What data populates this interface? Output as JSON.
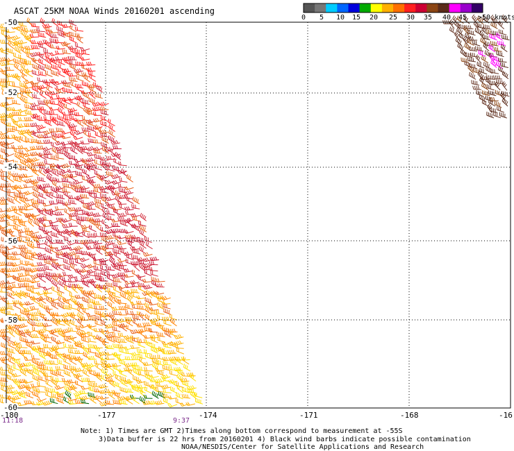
{
  "title": "ASCAT 25KM NOAA Winds 20160201 ascending",
  "colorbar": {
    "labels": [
      "0",
      "5",
      "10",
      "15",
      "20",
      "25",
      "30",
      "35",
      "40",
      "45",
      ">50 knots"
    ],
    "colors": [
      "#555555",
      "#777777",
      "#00ccff",
      "#0066ff",
      "#0000dd",
      "#00aa00",
      "#ffff00",
      "#ffb000",
      "#ff7000",
      "#ff2020",
      "#cc0033",
      "#8b4513",
      "#5a2b1a",
      "#ff00ff",
      "#9900cc",
      "#330066"
    ]
  },
  "map": {
    "lat_labels": [
      "-50",
      "-52",
      "-54",
      "-56",
      "-58",
      "-60"
    ],
    "lon_labels": [
      "-180",
      "-177",
      "-174",
      "-171",
      "-168",
      "-16"
    ],
    "gridlines": "dotted"
  },
  "times": {
    "left": "11:18",
    "right": "9:37",
    "left_color": "#7a2a8a",
    "right_color": "#7a2a8a"
  },
  "notes": {
    "line1": "Note: 1) Times are GMT 2)Times along bottom correspond to measurement at -55S",
    "line2": "3)Data buffer is 22 hrs from 20160201 4) Black wind barbs indicate possible contamination",
    "line3": "NOAA/NESDIS/Center for Satellite Applications and Research"
  },
  "palette": {
    "swath": [
      "#ffe000",
      "#ffb000",
      "#ff8000",
      "#e8601a",
      "#d22a3a",
      "#c8102e",
      "#ff2020",
      "#b8860b"
    ],
    "ne_swath": [
      "#5a2b1a",
      "#6b3a2a",
      "#8b4513",
      "#ff00ff"
    ],
    "green_barbs": "#006400"
  }
}
